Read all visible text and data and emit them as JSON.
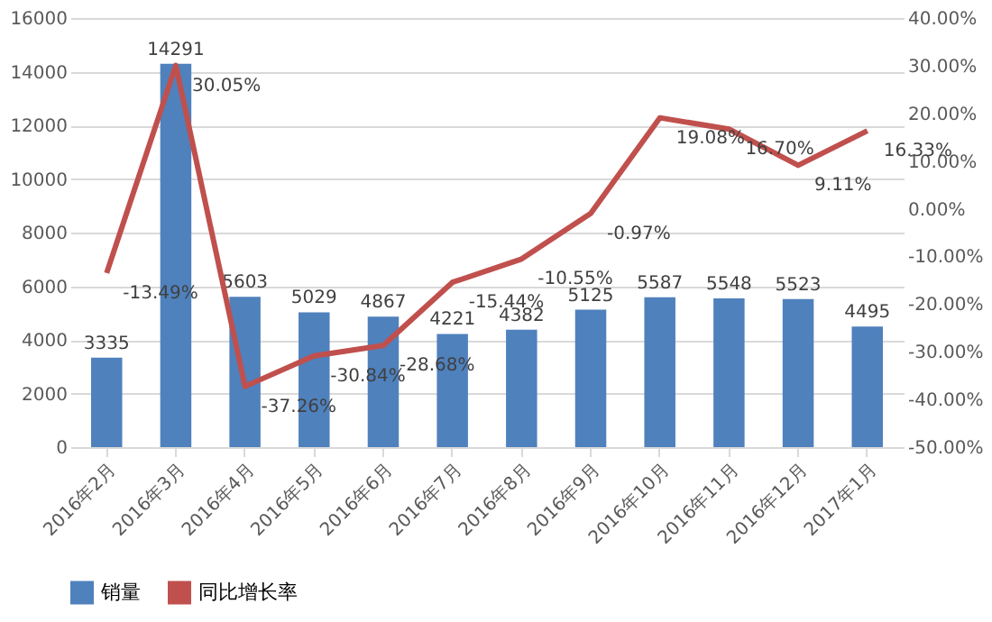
{
  "chart_data": {
    "type": "bar",
    "categories": [
      "2016年2月",
      "2016年3月",
      "2016年4月",
      "2016年5月",
      "2016年6月",
      "2016年7月",
      "2016年8月",
      "2016年9月",
      "2016年10月",
      "2016年11月",
      "2016年12月",
      "2017年1月"
    ],
    "series": [
      {
        "name": "销量",
        "color": "#4f81bd",
        "values": [
          3335,
          14291,
          5603,
          5029,
          4867,
          4221,
          4382,
          5125,
          5587,
          5548,
          5523,
          4495
        ],
        "value_labels": [
          "3335",
          "14291",
          "5603",
          "5029",
          "4867",
          "4221",
          "4382",
          "5125",
          "5587",
          "5548",
          "5523",
          "4495"
        ]
      },
      {
        "name": "同比增长率",
        "type": "line",
        "axis": "y2",
        "color": "#c0504d",
        "values": [
          -13.49,
          30.05,
          -37.26,
          -30.84,
          -28.68,
          -15.44,
          -10.55,
          -0.97,
          19.08,
          16.7,
          9.11,
          16.33
        ],
        "value_labels": [
          "-13.49%",
          "30.05%",
          "-37.26%",
          "-30.84%",
          "-28.68%",
          "-15.44%",
          "-10.55%",
          "-0.97%",
          "19.08%",
          "16.70%",
          "9.11%",
          "16.33%"
        ]
      }
    ],
    "ylim": [
      0,
      16000
    ],
    "yticks": [
      0,
      2000,
      4000,
      6000,
      8000,
      10000,
      12000,
      14000,
      16000
    ],
    "y2lim": [
      -50,
      40
    ],
    "y2ticks": [
      {
        "value": -50,
        "label": "-50.00%"
      },
      {
        "value": -40,
        "label": "-40.00%"
      },
      {
        "value": -30,
        "label": "-30.00%"
      },
      {
        "value": -20,
        "label": "-20.00%"
      },
      {
        "value": -10,
        "label": "-10.00%"
      },
      {
        "value": 0,
        "label": "0.00%"
      },
      {
        "value": 10,
        "label": "10.00%"
      },
      {
        "value": 20,
        "label": "20.00%"
      },
      {
        "value": 30,
        "label": "30.00%"
      },
      {
        "value": 40,
        "label": "40.00%"
      }
    ],
    "grid": "y",
    "legend": "bottom",
    "marker": "none",
    "line_style": "solid"
  }
}
